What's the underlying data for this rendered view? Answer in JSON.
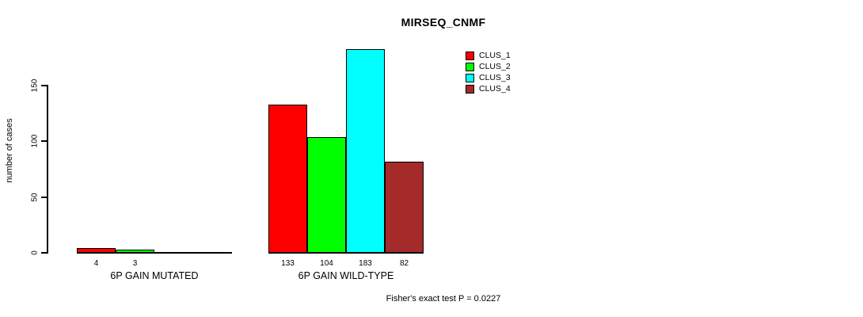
{
  "title": "MIRSEQ_CNMF",
  "ylabel": "number of cases",
  "footer": "Fisher's exact test P = 0.0227",
  "chart_data": {
    "type": "bar",
    "title": "MIRSEQ_CNMF",
    "xlabel": "",
    "ylabel": "number of cases",
    "categories": [
      "6P GAIN MUTATED",
      "6P GAIN WILD-TYPE"
    ],
    "series": [
      {
        "name": "CLUS_1",
        "color": "#ff0000",
        "values": [
          4,
          133
        ]
      },
      {
        "name": "CLUS_2",
        "color": "#00ff00",
        "values": [
          3,
          104
        ]
      },
      {
        "name": "CLUS_3",
        "color": "#00ffff",
        "values": [
          0,
          183
        ]
      },
      {
        "name": "CLUS_4",
        "color": "#a52a2a",
        "values": [
          0,
          82
        ]
      }
    ],
    "bar_value_labels": [
      [
        "4",
        "3",
        "",
        ""
      ],
      [
        "133",
        "104",
        "183",
        "82"
      ]
    ],
    "yticks": [
      0,
      50,
      100,
      150
    ],
    "ylim": [
      0,
      190
    ],
    "grid": false,
    "legend_position": "top-right",
    "annotation": "Fisher's exact test P = 0.0227"
  }
}
